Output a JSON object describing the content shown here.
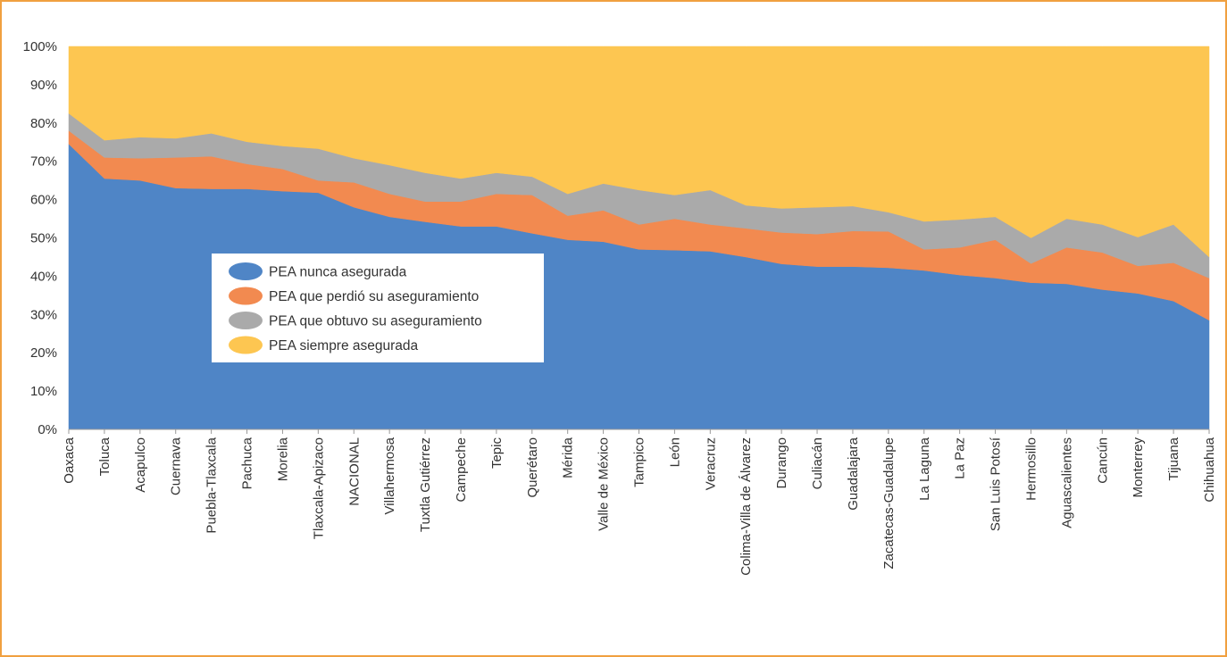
{
  "chart_data": {
    "type": "area",
    "stacked": "percent",
    "categories": [
      "Oaxaca",
      "Toluca",
      "Acapulco",
      "Cuernava",
      "Puebla-Tlaxcala",
      "Pachuca",
      "Morelia",
      "Tlaxcala-Apizaco",
      "NACIONAL",
      "Villahermosa",
      "Tuxtla Gutiérrez",
      "Campeche",
      "Tepic",
      "Querétaro",
      "Mérida",
      "Valle de México",
      "Tampico",
      "León",
      "Veracruz",
      "Colima-Villa de Álvarez",
      "Durango",
      "Culiacán",
      "Guadalajara",
      "Zacatecas-Guadalupe",
      "La Laguna",
      "La Paz",
      "San Luis Potosí",
      "Hermosillo",
      "Aguascalientes",
      "Cancún",
      "Monterrey",
      "Tijuana",
      "Chihuahua"
    ],
    "series": [
      {
        "name": "PEA nunca asegurada",
        "color": "#4f85c6",
        "values": [
          74.5,
          65.5,
          65,
          63,
          62.8,
          62.8,
          62.2,
          61.8,
          58,
          55.5,
          54.2,
          53,
          53,
          51.2,
          49.5,
          49,
          47,
          46.8,
          46.5,
          45,
          43.2,
          42.5,
          42.5,
          42.2,
          41.5,
          40.3,
          39.5,
          38.3,
          38,
          36.5,
          35.5,
          33.5,
          28.5
        ]
      },
      {
        "name": "PEA que perdió su aseguramiento",
        "color": "#f28a50",
        "values": [
          3.5,
          5.5,
          5.8,
          8,
          8.5,
          6.5,
          5.8,
          3.2,
          6.5,
          6,
          5.3,
          6.5,
          8.5,
          10,
          6.3,
          8.2,
          6.5,
          8.2,
          7,
          7.5,
          8.2,
          8.5,
          9.3,
          9.5,
          5.5,
          7.2,
          10,
          5,
          9.5,
          9.7,
          7.2,
          10,
          11
        ]
      },
      {
        "name": "PEA que obtuvo su aseguramiento",
        "color": "#aaaaaa",
        "values": [
          4.5,
          4.5,
          5.5,
          5,
          6,
          5.8,
          6,
          8.3,
          6.3,
          7.5,
          7.5,
          6,
          5.5,
          4.8,
          5.7,
          7,
          9,
          6.2,
          9,
          6,
          6.3,
          7,
          6.5,
          5,
          7.3,
          7.3,
          6,
          6.7,
          7.5,
          7.3,
          7.5,
          10,
          5.5
        ]
      },
      {
        "name": "PEA siempre asegurada",
        "color": "#fdc651",
        "values": [
          17.5,
          24.5,
          23.7,
          24,
          22.7,
          24.9,
          26,
          26.7,
          29.2,
          31,
          33,
          34.5,
          33,
          34,
          38.5,
          35.8,
          37.5,
          38.8,
          37.5,
          41.5,
          42.3,
          42,
          41.7,
          43.3,
          45.7,
          45.2,
          44.5,
          50,
          45,
          46.5,
          49.8,
          46.5,
          55
        ]
      }
    ],
    "yticks": [
      "0%",
      "10%",
      "20%",
      "30%",
      "40%",
      "50%",
      "60%",
      "70%",
      "80%",
      "90%",
      "100%"
    ],
    "ylim": [
      0,
      100
    ],
    "legend_position": "inside-left"
  }
}
